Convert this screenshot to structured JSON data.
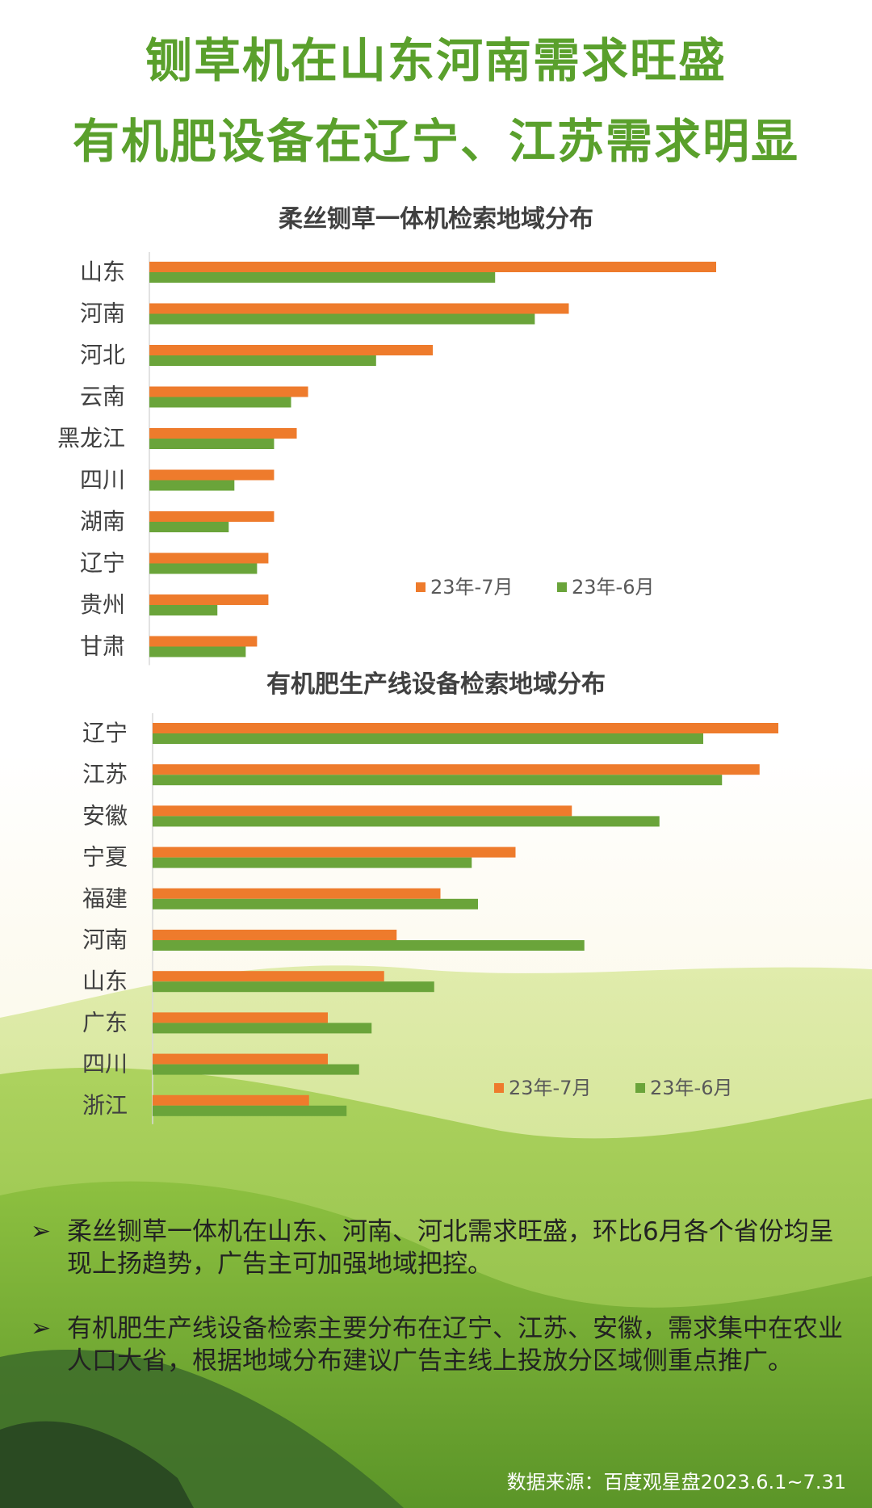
{
  "headline": {
    "line1": "铡草机在山东河南需求旺盛",
    "line2": "有机肥设备在辽宁、江苏需求明显"
  },
  "colors": {
    "series_jul": "#ee7b2c",
    "series_jun": "#6aa43a",
    "headline": "#5aa02c"
  },
  "chart_data": [
    {
      "type": "bar",
      "orientation": "horizontal",
      "title": "柔丝铡草一体机检索地域分布",
      "categories": [
        "山东",
        "河南",
        "河北",
        "云南",
        "黑龙江",
        "四川",
        "湖南",
        "辽宁",
        "贵州",
        "甘肃"
      ],
      "series": [
        {
          "name": "23年-7月",
          "values": [
            100,
            74,
            50,
            28,
            26,
            22,
            22,
            21,
            21,
            19
          ]
        },
        {
          "name": "23年-6月",
          "values": [
            61,
            68,
            40,
            25,
            22,
            15,
            14,
            19,
            12,
            17
          ]
        }
      ],
      "legend": "bottom-right",
      "grid": false
    },
    {
      "type": "bar",
      "orientation": "horizontal",
      "title": "有机肥生产线设备检索地域分布",
      "categories": [
        "辽宁",
        "江苏",
        "安徽",
        "宁夏",
        "福建",
        "河南",
        "山东",
        "广东",
        "四川",
        "浙江"
      ],
      "series": [
        {
          "name": "23年-7月",
          "values": [
            100,
            97,
            67,
            58,
            46,
            39,
            37,
            28,
            28,
            25
          ]
        },
        {
          "name": "23年-6月",
          "values": [
            88,
            91,
            81,
            51,
            52,
            69,
            45,
            35,
            33,
            31
          ]
        }
      ],
      "legend": "bottom-right",
      "grid": false
    }
  ],
  "bullets": [
    {
      "mark": "➢",
      "text": "柔丝铡草一体机在山东、河南、河北需求旺盛，环比6月各个省份均呈现上扬趋势，广告主可加强地域把控。"
    },
    {
      "mark": "➢",
      "text": "有机肥生产线设备检索主要分布在辽宁、江苏、安徽，需求集中在农业人口大省，根据地域分布建议广告主线上投放分区域侧重点推广。"
    }
  ],
  "source": "数据来源：百度观星盘2023.6.1~7.31"
}
